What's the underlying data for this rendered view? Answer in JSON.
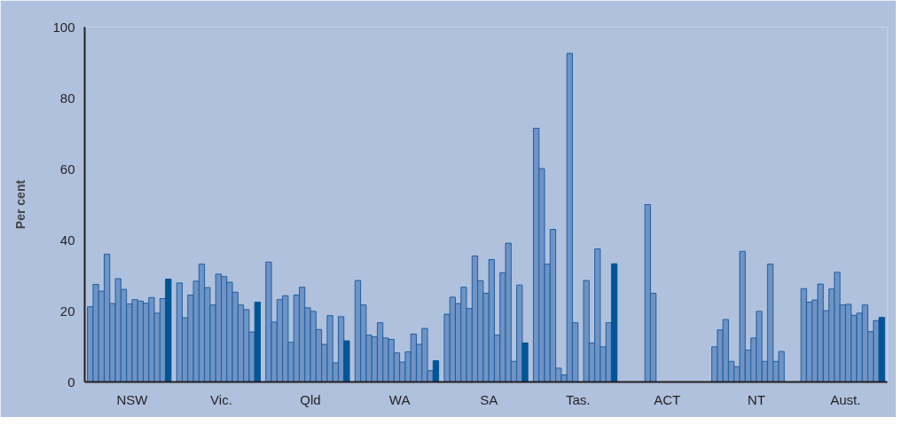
{
  "chart_data": {
    "type": "bar",
    "ylabel": "Per cent",
    "categories": [
      "NSW",
      "Vic.",
      "Qld",
      "WA",
      "SA",
      "Tas.",
      "ACT",
      "NT",
      "Aust."
    ],
    "ylim": [
      0,
      100
    ],
    "yticks": [
      0,
      20,
      40,
      60,
      80,
      100
    ],
    "grid": false,
    "series": [
      {
        "color": "#6f93c4",
        "values": [
          21.2,
          27.9,
          33.8,
          28.6,
          19.1,
          71.5,
          null,
          9.9,
          26.3
        ]
      },
      {
        "color": "#6f93c4",
        "values": [
          27.5,
          18.1,
          16.9,
          21.7,
          23.9,
          60.1,
          null,
          14.7,
          22.5
        ]
      },
      {
        "color": "#6f93c4",
        "values": [
          25.6,
          24.5,
          23.2,
          13.2,
          22.1,
          33.2,
          null,
          17.6,
          23.1
        ]
      },
      {
        "color": "#6f93c4",
        "values": [
          36.0,
          28.4,
          24.3,
          12.7,
          26.7,
          43.0,
          null,
          5.8,
          27.6
        ]
      },
      {
        "color": "#6f93c4",
        "values": [
          22.1,
          33.2,
          11.2,
          16.7,
          20.7,
          3.9,
          50.0,
          4.3,
          20.1
        ]
      },
      {
        "color": "#6f93c4",
        "values": [
          29.1,
          26.6,
          24.5,
          12.4,
          35.5,
          2.0,
          25.0,
          36.8,
          26.2
        ]
      },
      {
        "color": "#6f93c4",
        "values": [
          26.1,
          21.7,
          26.7,
          12.0,
          28.5,
          92.6,
          null,
          9.0,
          30.9
        ]
      },
      {
        "color": "#6f93c4",
        "values": [
          22.0,
          30.4,
          20.9,
          8.2,
          25.0,
          16.7,
          null,
          12.4,
          21.7
        ]
      },
      {
        "color": "#6f93c4",
        "values": [
          23.2,
          29.7,
          19.9,
          5.6,
          34.5,
          null,
          null,
          19.9,
          21.9
        ]
      },
      {
        "color": "#6f93c4",
        "values": [
          22.8,
          28.1,
          14.8,
          8.5,
          13.2,
          28.6,
          null,
          5.8,
          18.8
        ]
      },
      {
        "color": "#6f93c4",
        "values": [
          22.2,
          25.3,
          10.6,
          13.5,
          30.8,
          11.0,
          null,
          33.2,
          19.4
        ]
      },
      {
        "color": "#6f93c4",
        "values": [
          23.8,
          21.7,
          18.7,
          10.6,
          39.1,
          37.5,
          null,
          5.8,
          21.7
        ]
      },
      {
        "color": "#6f93c4",
        "values": [
          19.4,
          20.4,
          5.4,
          15.1,
          5.8,
          9.9,
          null,
          8.6,
          14.2
        ]
      },
      {
        "color": "#6f93c4",
        "values": [
          23.5,
          14.1,
          18.4,
          3.2,
          27.3,
          16.7,
          null,
          null,
          17.3
        ]
      },
      {
        "color": "#005596",
        "values": [
          29.0,
          22.5,
          11.6,
          6.0,
          11.0,
          33.3,
          null,
          null,
          18.2
        ]
      }
    ]
  }
}
